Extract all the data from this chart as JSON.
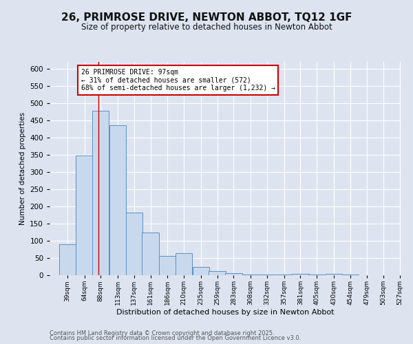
{
  "title1": "26, PRIMROSE DRIVE, NEWTON ABBOT, TQ12 1GF",
  "title2": "Size of property relative to detached houses in Newton Abbot",
  "xlabel": "Distribution of detached houses by size in Newton Abbot",
  "ylabel": "Number of detached properties",
  "bar_color": "#c9d9ed",
  "bar_edge_color": "#5a8fc2",
  "bins_left": [
    39,
    64,
    88,
    113,
    137,
    161,
    186,
    210,
    235,
    259,
    283,
    308,
    332,
    357,
    381,
    405,
    430,
    454,
    479,
    503
  ],
  "bar_heights": [
    90,
    348,
    478,
    435,
    182,
    125,
    57,
    65,
    24,
    12,
    7,
    3,
    3,
    3,
    5,
    3,
    5,
    3,
    0,
    0
  ],
  "tick_labels": [
    "39sqm",
    "64sqm",
    "88sqm",
    "113sqm",
    "137sqm",
    "161sqm",
    "186sqm",
    "210sqm",
    "235sqm",
    "259sqm",
    "283sqm",
    "308sqm",
    "332sqm",
    "357sqm",
    "381sqm",
    "405sqm",
    "430sqm",
    "454sqm",
    "479sqm",
    "503sqm",
    "527sqm"
  ],
  "bin_width": 25,
  "xmin": 26.5,
  "xmax": 540,
  "vline_x": 97,
  "vline_color": "#cc0000",
  "annotation_text": "26 PRIMROSE DRIVE: 97sqm\n← 31% of detached houses are smaller (572)\n68% of semi-detached houses are larger (1,232) →",
  "annotation_box_color": "#ffffff",
  "annotation_box_edge": "#cc0000",
  "ylim": [
    0,
    620
  ],
  "yticks": [
    0,
    50,
    100,
    150,
    200,
    250,
    300,
    350,
    400,
    450,
    500,
    550,
    600
  ],
  "background_color": "#dde4f0",
  "plot_bg_color": "#dde4f0",
  "grid_color": "#ffffff",
  "footer1": "Contains HM Land Registry data © Crown copyright and database right 2025.",
  "footer2": "Contains public sector information licensed under the Open Government Licence v3.0."
}
